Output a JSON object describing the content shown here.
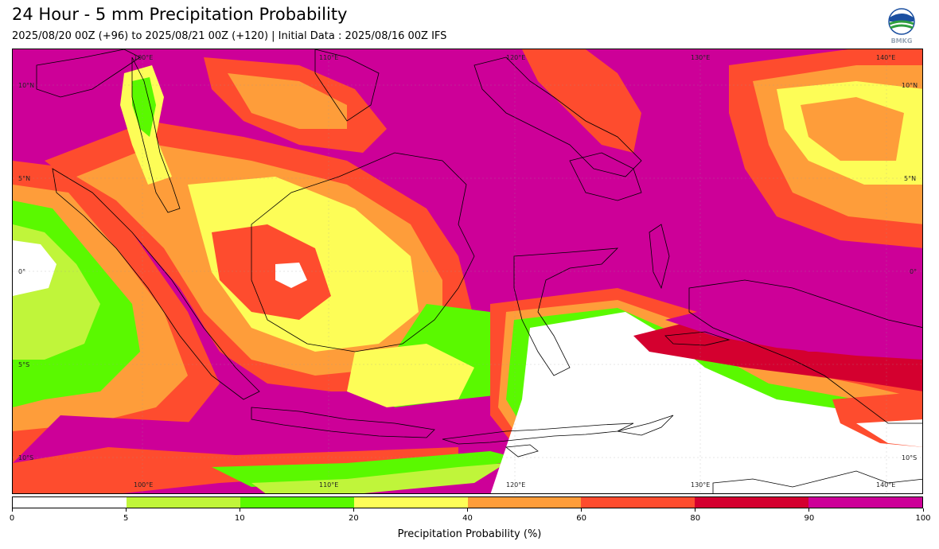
{
  "header": {
    "title": "24 Hour - 5 mm Precipitation Probability",
    "subtitle": "2025/08/20 00Z (+96) to 2025/08/21 00Z (+120) | Initial Data : 2025/08/16 00Z IFS"
  },
  "logo": {
    "text": "BMKG",
    "icon": "bmkg-logo-icon"
  },
  "map": {
    "region": "Indonesia",
    "lon_labels": [
      "100°E",
      "110°E",
      "120°E",
      "130°E",
      "140°E"
    ],
    "lat_labels": [
      "10°N",
      "5°N",
      "0°",
      "5°S",
      "10°S"
    ],
    "extent": {
      "lon": [
        93,
        142
      ],
      "lat": [
        -12,
        12
      ]
    }
  },
  "colorbar": {
    "label": "Precipitation Probability (%)",
    "ticks": [
      "0",
      "5",
      "10",
      "20",
      "40",
      "60",
      "80",
      "90",
      "100"
    ],
    "colors": [
      "#ffffff",
      "#c0f53a",
      "#5af900",
      "#fdfd57",
      "#fe9d3a",
      "#fe4c2e",
      "#d4002f",
      "#cd0098"
    ]
  }
}
